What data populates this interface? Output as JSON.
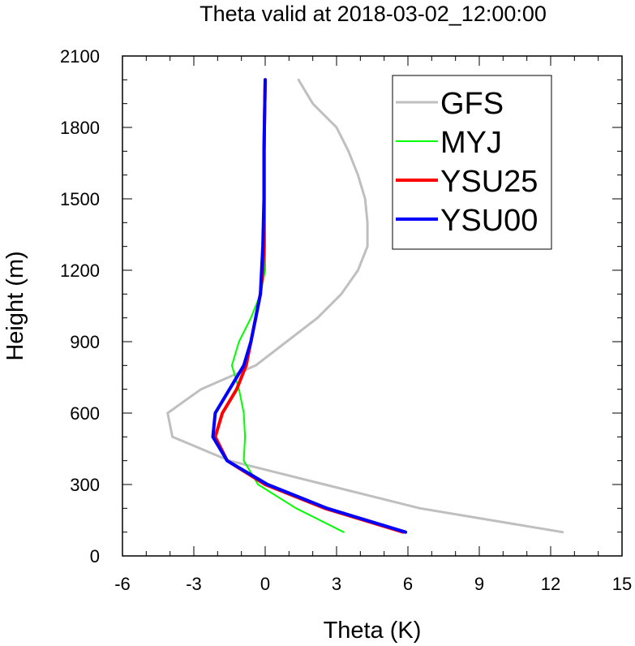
{
  "chart_data": {
    "type": "line",
    "title": "Theta valid at 2018-03-02_12:00:00",
    "xlabel": "Theta (K)",
    "ylabel": "Height (m)",
    "xlim": [
      -6,
      15
    ],
    "ylim": [
      0,
      2100
    ],
    "xticks": [
      "-6",
      "-3",
      "0",
      "3",
      "6",
      "9",
      "12",
      "15"
    ],
    "yticks": [
      "0",
      "300",
      "600",
      "900",
      "1200",
      "1500",
      "1800",
      "2100"
    ],
    "grid": false,
    "legend_position": "top-right",
    "series": [
      {
        "name": "GFS",
        "color": "#bfbfbf",
        "width": 3,
        "points": [
          [
            12.5,
            100
          ],
          [
            6.5,
            200
          ],
          [
            2.5,
            300
          ],
          [
            -1.5,
            400
          ],
          [
            -3.9,
            500
          ],
          [
            -4.1,
            600
          ],
          [
            -2.7,
            700
          ],
          [
            -0.4,
            800
          ],
          [
            0.9,
            900
          ],
          [
            2.2,
            1000
          ],
          [
            3.2,
            1100
          ],
          [
            3.9,
            1200
          ],
          [
            4.3,
            1300
          ],
          [
            4.3,
            1400
          ],
          [
            4.2,
            1500
          ],
          [
            3.9,
            1600
          ],
          [
            3.5,
            1700
          ],
          [
            3.0,
            1800
          ],
          [
            2.0,
            1900
          ],
          [
            1.4,
            2000
          ]
        ]
      },
      {
        "name": "MYJ",
        "color": "#00ff00",
        "width": 2,
        "points": [
          [
            3.3,
            100
          ],
          [
            1.3,
            200
          ],
          [
            -0.3,
            300
          ],
          [
            -0.9,
            400
          ],
          [
            -0.85,
            500
          ],
          [
            -0.9,
            600
          ],
          [
            -1.1,
            700
          ],
          [
            -1.4,
            800
          ],
          [
            -1.1,
            900
          ],
          [
            -0.6,
            1000
          ],
          [
            -0.2,
            1100
          ],
          [
            0.0,
            1200
          ],
          [
            0.0,
            1300
          ],
          [
            0.0,
            1500
          ],
          [
            0.0,
            1700
          ],
          [
            0.0,
            2000
          ]
        ]
      },
      {
        "name": "YSU25",
        "color": "#ff0000",
        "width": 4,
        "points": [
          [
            5.8,
            100
          ],
          [
            2.5,
            200
          ],
          [
            0.0,
            300
          ],
          [
            -1.6,
            400
          ],
          [
            -2.1,
            500
          ],
          [
            -1.8,
            600
          ],
          [
            -1.2,
            700
          ],
          [
            -0.8,
            800
          ],
          [
            -0.6,
            900
          ],
          [
            -0.4,
            1000
          ],
          [
            -0.2,
            1100
          ],
          [
            -0.1,
            1200
          ],
          [
            -0.05,
            1300
          ],
          [
            -0.05,
            1500
          ],
          [
            -0.05,
            1700
          ],
          [
            0.0,
            2000
          ]
        ]
      },
      {
        "name": "YSU00",
        "color": "#0000ff",
        "width": 4,
        "points": [
          [
            5.9,
            100
          ],
          [
            2.6,
            200
          ],
          [
            0.1,
            300
          ],
          [
            -1.6,
            400
          ],
          [
            -2.2,
            500
          ],
          [
            -2.1,
            600
          ],
          [
            -1.5,
            700
          ],
          [
            -0.9,
            800
          ],
          [
            -0.6,
            900
          ],
          [
            -0.4,
            1000
          ],
          [
            -0.2,
            1100
          ],
          [
            -0.15,
            1200
          ],
          [
            -0.1,
            1300
          ],
          [
            -0.05,
            1500
          ],
          [
            -0.05,
            1700
          ],
          [
            0.0,
            2000
          ]
        ]
      }
    ]
  }
}
